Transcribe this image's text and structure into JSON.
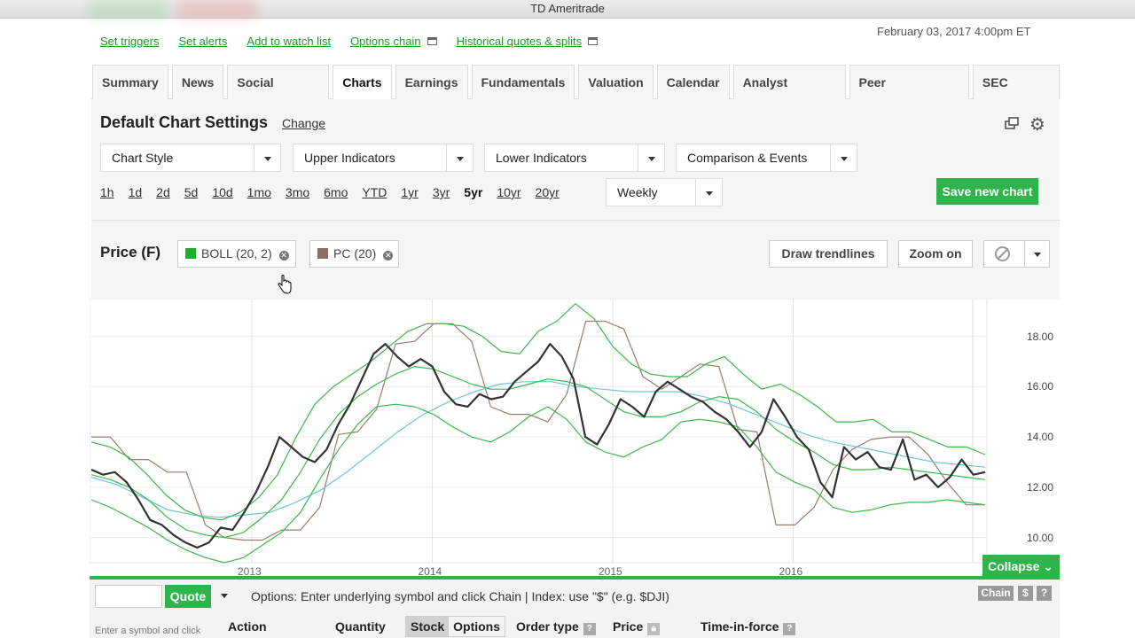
{
  "window": {
    "title": "TD Ameritrade"
  },
  "toolbar_links": [
    {
      "label": "Set triggers",
      "icon": ""
    },
    {
      "label": "Set alerts",
      "icon": ""
    },
    {
      "label": "Add to watch list",
      "icon": ""
    },
    {
      "label": "Options chain",
      "icon": "window-icon"
    },
    {
      "label": "Historical quotes & splits",
      "icon": "window-icon"
    }
  ],
  "timestamp": "February 03, 2017 4:00pm ET",
  "tabs": [
    "Summary",
    "News",
    "Social Signals",
    "Charts",
    "Earnings",
    "Fundamentals",
    "Valuation",
    "Calendar",
    "Analyst Reports",
    "Peer Comparison",
    "SEC Filings"
  ],
  "active_tab": "Charts",
  "settings": {
    "title": "Default Chart Settings",
    "change_label": "Change",
    "dropdowns": [
      "Chart Style",
      "Upper Indicators",
      "Lower Indicators",
      "Comparison & Events"
    ],
    "ranges": [
      "1h",
      "1d",
      "2d",
      "5d",
      "10d",
      "1mo",
      "3mo",
      "6mo",
      "YTD",
      "1yr",
      "3yr",
      "5yr",
      "10yr",
      "20yr"
    ],
    "selected_range": "5yr",
    "frequency": "Weekly",
    "save_label": "Save new chart"
  },
  "price_bar": {
    "label": "Price (F)",
    "indicators": [
      {
        "label": "BOLL (20, 2)",
        "color": "#1fae2b"
      },
      {
        "label": "PC (20)",
        "color": "#8c6e62"
      }
    ],
    "draw_trendlines_label": "Draw trendlines",
    "zoom_label": "Zoom on"
  },
  "chart_data": {
    "type": "line",
    "x_ticks": [
      "2013",
      "2014",
      "2015",
      "2016"
    ],
    "y_ticks": [
      "18.00",
      "16.00",
      "14.00",
      "12.00",
      "10.00"
    ],
    "ylim": [
      9.0,
      19.5
    ],
    "grid": true,
    "series": [
      {
        "values": [
          12.7,
          12.5,
          12.6,
          12.2,
          11.5,
          10.7,
          10.5,
          10.1,
          9.8,
          9.6,
          9.8,
          10.4,
          10.3,
          11.0,
          11.8,
          12.8,
          14.0,
          13.6,
          13.2,
          13.0,
          13.5,
          14.5,
          15.3,
          16.3,
          17.3,
          17.7,
          17.2,
          16.8,
          17.1,
          16.8,
          15.8,
          15.3,
          15.2,
          15.7,
          15.5,
          15.6,
          16.2,
          16.6,
          17.0,
          17.7,
          17.2,
          16.3,
          14.0,
          13.7,
          14.5,
          15.5,
          15.2,
          14.8,
          15.8,
          16.2,
          15.9,
          15.6,
          15.4,
          15.0,
          14.7,
          14.2,
          13.6,
          14.2,
          15.5,
          14.8,
          14.0,
          13.5,
          12.2,
          11.6,
          13.6,
          13.1,
          13.4,
          12.8,
          12.7,
          13.9,
          12.3,
          12.5,
          12.0,
          12.4,
          13.1,
          12.5,
          12.6
        ],
        "color": "#333333"
      },
      {
        "values": [
          13.8,
          13.6,
          13.2,
          12.5,
          11.7,
          11.1,
          10.8,
          10.7,
          11.0,
          11.6,
          12.5,
          14.0,
          15.3,
          16.0,
          16.5,
          17.0,
          17.6,
          18.2,
          18.5,
          18.5,
          18.4,
          18.0,
          17.4,
          17.3,
          18.2,
          18.6,
          19.3,
          18.7,
          17.6,
          16.9,
          16.5,
          16.4,
          16.4,
          16.9,
          17.2,
          16.5,
          15.9,
          16.1,
          15.7,
          15.2,
          14.6,
          14.6,
          14.7,
          14.2,
          14.2,
          13.9,
          13.6,
          13.6,
          13.3
        ],
        "color": "#3cb84a"
      },
      {
        "values": [
          11.5,
          11.2,
          10.8,
          10.4,
          9.9,
          9.5,
          9.2,
          9.0,
          9.2,
          9.7,
          10.2,
          11.0,
          12.3,
          13.5,
          14.5,
          15.2,
          15.3,
          15.2,
          14.9,
          14.4,
          14.0,
          13.8,
          14.2,
          14.8,
          15.2,
          14.7,
          13.8,
          13.4,
          13.2,
          13.6,
          13.9,
          14.6,
          14.7,
          14.6,
          14.4,
          13.6,
          12.6,
          12.2,
          11.9,
          11.2,
          11.0,
          11.1,
          11.3,
          11.4,
          11.4,
          11.5,
          11.4,
          11.3
        ],
        "color": "#3cb84a"
      },
      {
        "values": [
          12.5,
          12.3,
          12.0,
          11.5,
          10.8,
          10.3,
          10.1,
          10.0,
          10.2,
          10.8,
          11.5,
          12.6,
          13.9,
          14.9,
          15.6,
          16.1,
          16.5,
          16.8,
          16.7,
          16.4,
          16.1,
          15.9,
          15.9,
          16.1,
          16.3,
          16.2,
          16.0,
          15.5,
          15.0,
          14.8,
          14.8,
          15.0,
          15.4,
          15.6,
          15.5,
          15.0,
          14.3,
          13.8,
          13.4,
          12.9,
          12.7,
          12.7,
          12.8,
          12.7,
          12.6,
          12.5,
          12.4,
          12.3
        ],
        "color": "#3cb84a"
      },
      {
        "values": [
          12.4,
          12.1,
          11.6,
          11.1,
          10.9,
          10.8,
          10.9,
          11.0,
          11.4,
          11.9,
          12.6,
          13.4,
          14.2,
          14.9,
          15.4,
          15.8,
          16.1,
          16.2,
          16.2,
          16.0,
          15.9,
          15.8,
          15.8,
          15.8,
          15.6,
          15.3,
          14.9,
          14.5,
          14.1,
          13.8,
          13.6,
          13.4,
          13.2,
          13.0,
          12.9,
          12.8
        ],
        "color": "#6fc7d6"
      },
      {
        "values": [
          14.0,
          14.0,
          13.1,
          13.1,
          12.6,
          12.6,
          10.5,
          10.0,
          9.9,
          9.9,
          10.3,
          10.3,
          11.2,
          14.1,
          14.2,
          15.1,
          17.7,
          17.8,
          18.5,
          18.5,
          17.8,
          15.2,
          14.9,
          14.9,
          14.6,
          15.7,
          18.6,
          18.6,
          18.3,
          16.4,
          15.9,
          16.4,
          16.9,
          16.8,
          14.3,
          14.2,
          10.5,
          10.5,
          11.2,
          12.7,
          13.5,
          13.9,
          14.0,
          14.0,
          13.3,
          12.2,
          11.3,
          11.3
        ],
        "color": "#9a7b6f"
      }
    ]
  },
  "collapse_label": "Collapse",
  "order_bar": {
    "symbol_placeholder": "",
    "quote_label": "Quote",
    "options_hint": "Options: Enter underlying symbol and click Chain | Index: use \"$\" (e.g. $DJI)",
    "chain_label": "Chain",
    "dollar_label": "$",
    "help_label": "?",
    "symbol_hint": "Enter a symbol and click",
    "columns": {
      "action": "Action",
      "quantity": "Quantity",
      "stock": "Stock",
      "options": "Options",
      "order_type": "Order type",
      "price": "Price",
      "time_in_force": "Time-in-force"
    }
  }
}
